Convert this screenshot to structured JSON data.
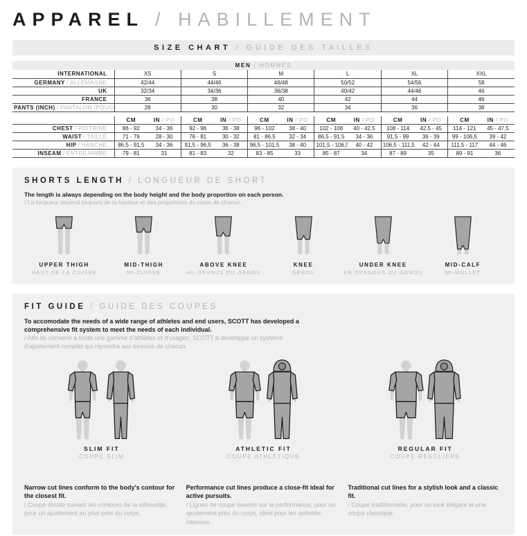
{
  "sep": "/",
  "page": {
    "title_en": "APPAREL",
    "title_sep": "/",
    "title_fr": "HABILLEMENT"
  },
  "colors": {
    "ink": "#1d1d1b",
    "muted": "#b3b3b2",
    "band_bg": "#ececec",
    "panel_bg": "#f1f0ef",
    "table_line": "#4a4a49",
    "figure_body": "#d2d2d1",
    "figure_garment": "#a5a5a4"
  },
  "size_chart": {
    "heading_en": "SIZE CHART",
    "heading_sep": "/",
    "heading_fr": "GUIDE DES TAILLES",
    "group_header_en": "MEN",
    "group_header_sep": "/",
    "group_header_fr": "HOMMES",
    "sizes_table": {
      "rows": [
        {
          "label_en": "INTERNATIONAL",
          "label_fr": "",
          "values": [
            "XS",
            "S",
            "M",
            "L",
            "XL",
            "XXL"
          ]
        },
        {
          "label_en": "GERMANY",
          "label_fr": "ALLEMAGNE",
          "values": [
            "42/44",
            "44/46",
            "46/48",
            "50/52",
            "54/56",
            "58"
          ]
        },
        {
          "label_en": "UK",
          "label_fr": "",
          "values": [
            "32/34",
            "34/36",
            "36/38",
            "40/42",
            "44/46",
            "46"
          ]
        },
        {
          "label_en": "FRANCE",
          "label_fr": "",
          "values": [
            "36",
            "38",
            "40",
            "42",
            "44",
            "46"
          ]
        },
        {
          "label_en": "PANTS (INCH)",
          "label_fr": "PANTALON (POUCE)",
          "values": [
            "28",
            "30",
            "32",
            "34",
            "36",
            "38"
          ]
        }
      ]
    },
    "measurements_table": {
      "unit_cm": "CM",
      "unit_in": "IN",
      "unit_in_fr": "PO",
      "rows": [
        {
          "label_en": "CHEST",
          "label_fr": "POITRINE",
          "values": [
            [
              "86 - 92",
              "34 - 36"
            ],
            [
              "92 - 96",
              "36 - 38"
            ],
            [
              "96 - 102",
              "38 - 40"
            ],
            [
              "102 - 108",
              "40 - 42,5"
            ],
            [
              "108 - 114",
              "42,5 - 45"
            ],
            [
              "114 - 121",
              "45 - 47,5"
            ]
          ]
        },
        {
          "label_en": "WAIST",
          "label_fr": "TAILLE",
          "values": [
            [
              "71 - 76",
              "28 - 30"
            ],
            [
              "76 - 81",
              "30 - 32"
            ],
            [
              "81 - 86,5",
              "32 - 34"
            ],
            [
              "86,5 - 91,5",
              "34 - 36"
            ],
            [
              "91,5 - 99",
              "36 - 39"
            ],
            [
              "99 - 106,5",
              "39 - 42"
            ]
          ]
        },
        {
          "label_en": "HIP",
          "label_fr": "HANCHE",
          "values": [
            [
              "86,5 - 91,5",
              "34 - 36"
            ],
            [
              "91,5 - 96,5",
              "36 - 38"
            ],
            [
              "96,5 - 101,5",
              "38 - 40"
            ],
            [
              "101,5 - 106,5",
              "40 - 42"
            ],
            [
              "106,5 - 111,5",
              "42 - 44"
            ],
            [
              "111,5 - 117",
              "44 - 46"
            ]
          ]
        },
        {
          "label_en": "INSEAM",
          "label_fr": "ENTREJAMBE",
          "values": [
            [
              "79 - 81",
              "31"
            ],
            [
              "81 - 83",
              "32"
            ],
            [
              "83 - 85",
              "33"
            ],
            [
              "85 - 87",
              "34"
            ],
            [
              "87 - 89",
              "35"
            ],
            [
              "89 - 91",
              "36"
            ]
          ]
        }
      ]
    }
  },
  "shorts_length": {
    "heading_en": "SHORTS LENGTH",
    "heading_sep": "/",
    "heading_fr": "LONGUEUR DE SHORT",
    "desc_en": "The length is always depending on the body height and the body proportion on each person.",
    "desc_fr": "/ La longueur dépend toujours de la hauteur et des proportions du corps de chacun.",
    "items": [
      {
        "label_en": "UPPER THIGH",
        "label_fr": "HAUT DE LA CUISSE",
        "length_level": 1
      },
      {
        "label_en": "MID-THIGH",
        "label_fr": "MI-CUISSE",
        "length_level": 2
      },
      {
        "label_en": "ABOVE KNEE",
        "label_fr": "AU-DESSUS DU GENOU",
        "length_level": 3
      },
      {
        "label_en": "KNEE",
        "label_fr": "GENOU",
        "length_level": 4
      },
      {
        "label_en": "UNDER KNEE",
        "label_fr": "EN DESSOUS DU GENOU",
        "length_level": 5
      },
      {
        "label_en": "MID-CALF",
        "label_fr": "MI-MOLLET",
        "length_level": 6
      }
    ]
  },
  "fit_guide": {
    "heading_en": "FIT GUIDE",
    "heading_sep": "/",
    "heading_fr": "GUIDE DES COUPES",
    "desc_en": "To accomodate the needs of a wide range of athletes and end users, SCOTT has developed a comprehensive fit system to meet the needs of each individual.",
    "desc_fr": "/ Afin de convenir à toute une gamme d'athlètes et d'usages, SCOTT a développé un système d'ajustement complet qui répondra aux besoins de chacun.",
    "fits": [
      {
        "label_en": "SLIM FIT",
        "label_fr": "COUPE SLIM",
        "desc_en": "Narrow cut lines conform to the body's contour for the closest fit.",
        "desc_fr": "/ Coupe étroite suivant les contours de la silhouette, pour un ajustement au plus près du corps.",
        "figures": [
          "tee-shorts",
          "longsleeve-pants"
        ],
        "width_level": 0
      },
      {
        "label_en": "ATHLETIC FIT",
        "label_fr": "COUPE ATHLÉTIQUE",
        "desc_en": "Performance cut lines produce a close-fit ideal for active pursuits.",
        "desc_fr": "/ Lignes de coupe basées sur la performance, pour un ajustement près du corps, idéal pour les activités intenses.",
        "figures": [
          "tee-shorts",
          "hoodie-pants"
        ],
        "width_level": 1
      },
      {
        "label_en": "REGULAR FIT",
        "label_fr": "COUPE RÉGULIÈRE",
        "desc_en": "Traditional cut lines for a stylish look and a classic fit.",
        "desc_fr": "/ Coupe traditionnelle, pour un look élégant et une coupe classique.",
        "figures": [
          "tee-shorts",
          "hoodie-pants"
        ],
        "width_level": 2
      }
    ]
  }
}
